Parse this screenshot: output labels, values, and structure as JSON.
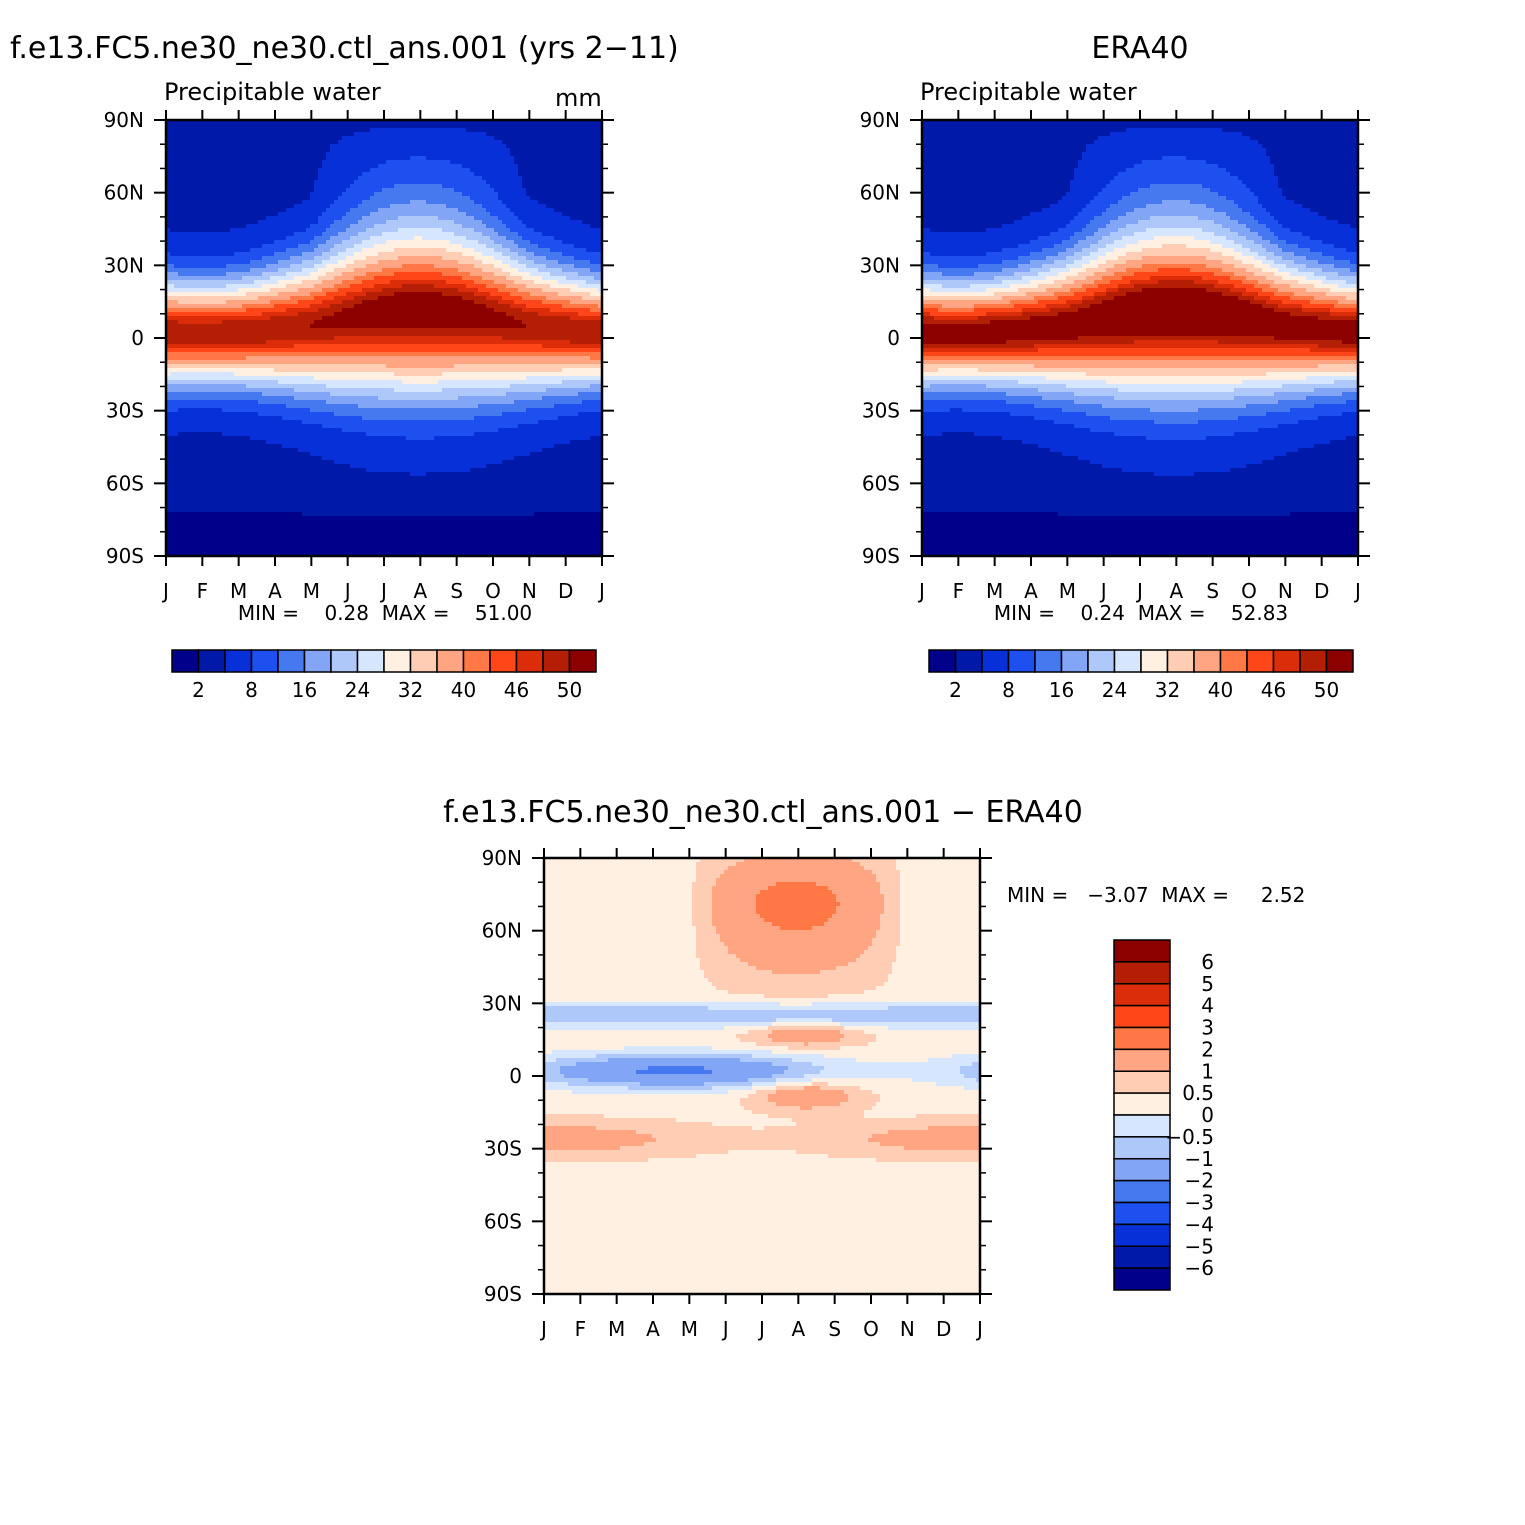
{
  "chart_data": [
    {
      "type": "heatmap",
      "title": "f.e13.FC5.ne30_ne30.ctl_ans.001 (yrs 2−11)",
      "subtitle": "Precipitable water",
      "units": "mm",
      "stats": {
        "text": "MIN =    0.28  MAX =    51.00",
        "min": 0.28,
        "max": 51.0
      },
      "x_ticks": [
        "J",
        "F",
        "M",
        "A",
        "M",
        "J",
        "J",
        "A",
        "S",
        "O",
        "N",
        "D",
        "J"
      ],
      "y_ticks": [
        "90N",
        "60N",
        "30N",
        "0",
        "30S",
        "60S",
        "90S"
      ],
      "y_values": [
        90,
        60,
        30,
        0,
        -30,
        -60,
        -90
      ],
      "ylim": [
        -90,
        90
      ],
      "colorbar": {
        "orientation": "horizontal",
        "colors": [
          "#00008b",
          "#0019a8",
          "#0830d8",
          "#1e50f0",
          "#4678f0",
          "#82a5f5",
          "#afc8fa",
          "#d7e6ff",
          "#fff0e1",
          "#ffcdb4",
          "#ffa582",
          "#ff7846",
          "#ff4619",
          "#dc2d0a",
          "#b41e05",
          "#8c0000"
        ],
        "labels": [
          "2",
          "8",
          "16",
          "24",
          "32",
          "40",
          "46",
          "50"
        ]
      },
      "eq_peak_mm": 51.0,
      "eq_peak_lat_jja": 8,
      "eq_peak_lat_djf": -4
    },
    {
      "type": "heatmap",
      "title": "ERA40",
      "subtitle": "Precipitable water",
      "stats": {
        "text": "MIN =    0.24  MAX =    52.83",
        "min": 0.24,
        "max": 52.83
      },
      "x_ticks": [
        "J",
        "F",
        "M",
        "A",
        "M",
        "J",
        "J",
        "A",
        "S",
        "O",
        "N",
        "D",
        "J"
      ],
      "y_ticks": [
        "90N",
        "60N",
        "30N",
        "0",
        "30S",
        "60S",
        "90S"
      ],
      "y_values": [
        90,
        60,
        30,
        0,
        -30,
        -60,
        -90
      ],
      "ylim": [
        -90,
        90
      ],
      "colorbar": {
        "orientation": "horizontal",
        "colors": [
          "#00008b",
          "#0019a8",
          "#0830d8",
          "#1e50f0",
          "#4678f0",
          "#82a5f5",
          "#afc8fa",
          "#d7e6ff",
          "#fff0e1",
          "#ffcdb4",
          "#ffa582",
          "#ff7846",
          "#ff4619",
          "#dc2d0a",
          "#b41e05",
          "#8c0000"
        ],
        "labels": [
          "2",
          "8",
          "16",
          "24",
          "32",
          "40",
          "46",
          "50"
        ]
      },
      "eq_peak_mm": 52.83
    },
    {
      "type": "heatmap",
      "title": "f.e13.FC5.ne30_ne30.ctl_ans.001 − ERA40",
      "stats": {
        "text": "MIN =   −3.07  MAX =     2.52",
        "min": -3.07,
        "max": 2.52
      },
      "x_ticks": [
        "J",
        "F",
        "M",
        "A",
        "M",
        "J",
        "J",
        "A",
        "S",
        "O",
        "N",
        "D",
        "J"
      ],
      "y_ticks": [
        "90N",
        "60N",
        "30N",
        "0",
        "30S",
        "60S",
        "90S"
      ],
      "y_values": [
        90,
        60,
        30,
        0,
        -30,
        -60,
        -90
      ],
      "ylim": [
        -90,
        90
      ],
      "colorbar": {
        "orientation": "vertical",
        "colors_top_to_bottom": [
          "#8c0000",
          "#b41e05",
          "#dc2d0a",
          "#ff4619",
          "#ff7846",
          "#ffa582",
          "#ffcdb4",
          "#fff0e1",
          "#d7e6ff",
          "#afc8fa",
          "#82a5f5",
          "#4678f0",
          "#1e50f0",
          "#0830d8",
          "#0019a8",
          "#00008b"
        ],
        "labels_top_to_bottom": [
          "6",
          "5",
          "4",
          "3",
          "2",
          "1",
          "0.5",
          "0",
          "−0.5",
          "−1",
          "−2",
          "−3",
          "−4",
          "−5",
          "−6"
        ]
      }
    }
  ]
}
